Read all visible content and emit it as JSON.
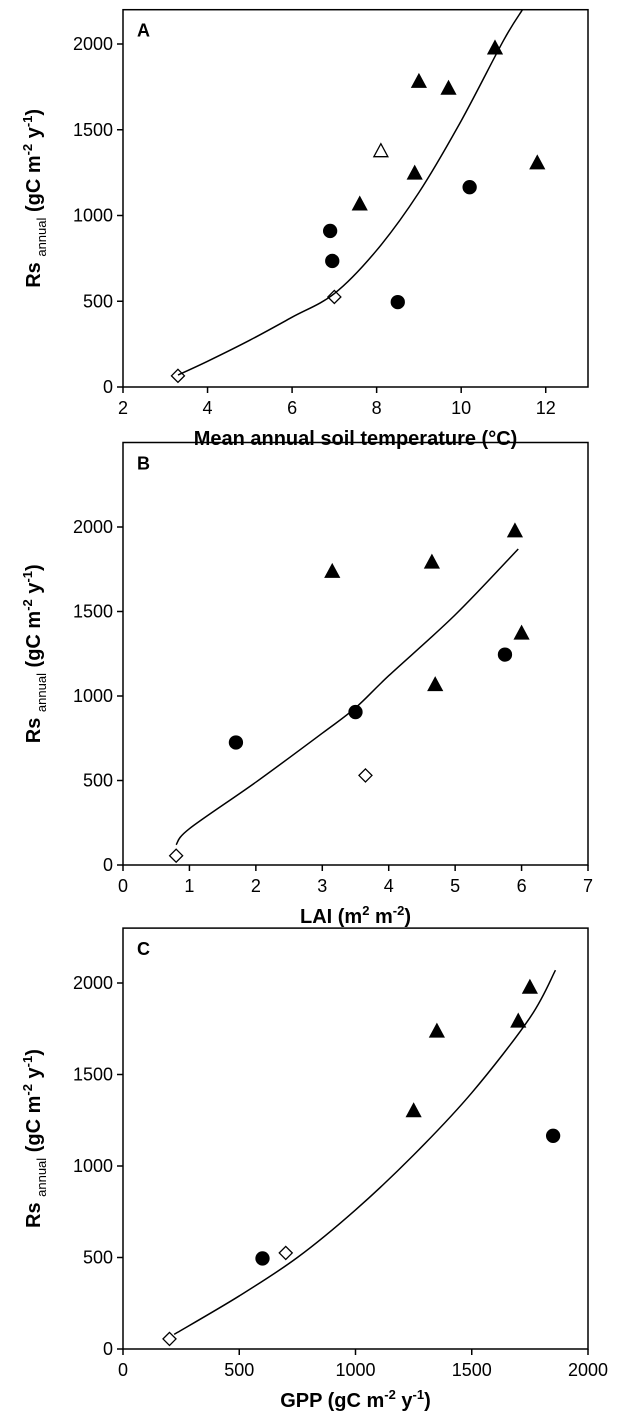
{
  "chart_data": [
    {
      "type": "scatter",
      "label": "A",
      "ylabel": [
        "Rs ",
        "annual",
        " (gC m",
        "-2",
        " y",
        "-1",
        ")"
      ],
      "xlabel": [
        "Mean annual soil temperature (°C)"
      ],
      "xlim": [
        2,
        13
      ],
      "xticks": [
        2,
        4,
        6,
        8,
        10,
        12
      ],
      "ylim": [
        0,
        2200
      ],
      "yticks": [
        0,
        500,
        1000,
        1500,
        2000
      ],
      "series": [
        {
          "marker": "diamond",
          "color": "#000000",
          "fill": "#ffffff",
          "x": [
            3.3,
            7.0
          ],
          "values": [
            65,
            525
          ]
        },
        {
          "marker": "triangle",
          "color": "#000000",
          "fill": "#ffffff",
          "x": [
            8.1
          ],
          "values": [
            1375
          ]
        },
        {
          "marker": "triangle",
          "color": "#000000",
          "fill": "#000000",
          "x": [
            7.6,
            8.9,
            9.0,
            9.7,
            10.8,
            11.8
          ],
          "values": [
            1065,
            1245,
            1780,
            1740,
            1975,
            1305
          ]
        },
        {
          "marker": "circle",
          "color": "#000000",
          "fill": "#000000",
          "x": [
            6.9,
            6.95,
            8.5,
            10.2
          ],
          "values": [
            910,
            735,
            495,
            1165
          ]
        },
        {
          "marker": "none",
          "color": "#000000",
          "x": [
            3.3,
            4,
            5,
            6,
            7,
            8,
            9,
            10,
            11,
            11.45
          ],
          "values": [
            70,
            150,
            273,
            407,
            545,
            797,
            1134,
            1552,
            2020,
            2200
          ]
        }
      ]
    },
    {
      "type": "scatter",
      "label": "B",
      "ylabel": [
        "Rs ",
        "annual",
        " (gC m",
        "-2",
        " y",
        "-1",
        ")"
      ],
      "xlabel": [
        "LAI (m",
        "2",
        " m",
        "-2",
        ")"
      ],
      "xlim": [
        0,
        7
      ],
      "xticks": [
        0,
        1,
        2,
        3,
        4,
        5,
        6,
        7
      ],
      "ylim": [
        0,
        2500
      ],
      "yticks": [
        0,
        500,
        1000,
        1500,
        2000
      ],
      "series": [
        {
          "marker": "diamond",
          "color": "#000000",
          "fill": "#ffffff",
          "x": [
            0.8,
            3.65
          ],
          "values": [
            55,
            530
          ]
        },
        {
          "marker": "circle",
          "color": "#000000",
          "fill": "#000000",
          "x": [
            1.7,
            3.5,
            5.75
          ],
          "values": [
            725,
            905,
            1245
          ]
        },
        {
          "marker": "triangle",
          "color": "#000000",
          "fill": "#000000",
          "x": [
            3.15,
            4.65,
            4.7,
            5.9,
            6.0
          ],
          "values": [
            1735,
            1790,
            1065,
            1975,
            1370
          ]
        },
        {
          "marker": "none",
          "color": "#000000",
          "x": [
            0.8,
            1,
            2,
            3,
            3.5,
            4,
            5,
            5.95
          ],
          "values": [
            120,
            215,
            490,
            780,
            930,
            1120,
            1480,
            1870
          ]
        }
      ]
    },
    {
      "type": "scatter",
      "label": "C",
      "ylabel": [
        "Rs ",
        "annual",
        " (gC m",
        "-2",
        " y",
        "-1",
        ")"
      ],
      "xlabel": [
        "GPP (gC m",
        "-2",
        " y",
        "-1",
        ")"
      ],
      "xlim": [
        0,
        2000
      ],
      "xticks": [
        0,
        500,
        1000,
        1500,
        2000
      ],
      "ylim": [
        0,
        2300
      ],
      "yticks": [
        0,
        500,
        1000,
        1500,
        2000
      ],
      "series": [
        {
          "marker": "diamond",
          "color": "#000000",
          "fill": "#ffffff",
          "x": [
            200,
            700
          ],
          "values": [
            55,
            525
          ]
        },
        {
          "marker": "circle",
          "color": "#000000",
          "fill": "#000000",
          "x": [
            600,
            1850
          ],
          "values": [
            495,
            1165
          ]
        },
        {
          "marker": "triangle",
          "color": "#000000",
          "fill": "#000000",
          "x": [
            1250,
            1350,
            1700,
            1750
          ],
          "values": [
            1300,
            1735,
            1790,
            1975
          ]
        },
        {
          "marker": "none",
          "color": "#000000",
          "x": [
            220,
            500,
            750,
            1000,
            1250,
            1500,
            1750,
            1860
          ],
          "values": [
            80,
            290,
            500,
            760,
            1060,
            1400,
            1810,
            2070
          ]
        }
      ]
    }
  ]
}
